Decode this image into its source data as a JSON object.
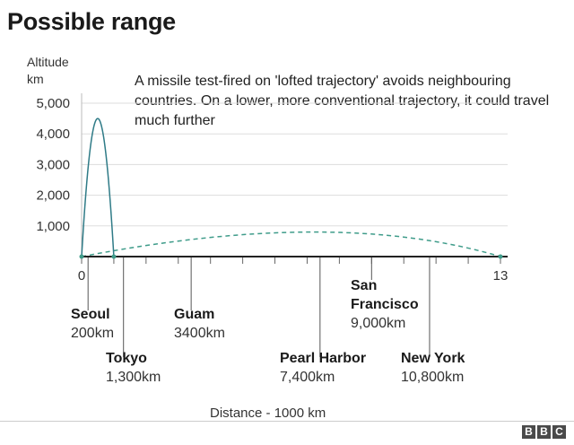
{
  "title": "Possible range",
  "annotation": "A missile test-fired on 'lofted trajectory' avoids neighbouring countries. On a lower, more conventional trajectory, it could travel much further",
  "footer": {
    "logo": [
      "B",
      "B",
      "C"
    ]
  },
  "colors": {
    "lofted": "#2f7b87",
    "conventional": "#3f9c8a",
    "axis": "#222222",
    "grid": "#dddddd",
    "tick": "#666666"
  },
  "chart_data": {
    "type": "line",
    "title": "Possible range",
    "ylabel": "Altitude\nkm",
    "xlabel": "Distance - 1000 km",
    "xlim": [
      0,
      13
    ],
    "ylim": [
      0,
      5000
    ],
    "y_ticks": [
      "1,000",
      "2,000",
      "3,000",
      "4,000",
      "5,000"
    ],
    "y_tick_values": [
      1000,
      2000,
      3000,
      4000,
      5000
    ],
    "x_tick_labels": [
      {
        "label": "0",
        "value": 0
      },
      {
        "label": "13",
        "value": 13
      }
    ],
    "series": [
      {
        "style": "solid",
        "peak_altitude": 4500,
        "range_start": 0,
        "range_end": 1.0
      },
      {
        "style": "dashed",
        "peak_altitude": 800,
        "peak_x": 7.2,
        "range_start": 0,
        "range_end": 13
      }
    ],
    "annotations": [
      {
        "name": "Seoul",
        "distance_label": "200km",
        "x": 0.2
      },
      {
        "name": "Tokyo",
        "distance_label": "1,300km",
        "x": 1.3
      },
      {
        "name": "Guam",
        "distance_label": "3400km",
        "x": 3.4
      },
      {
        "name": "Pearl Harbor",
        "distance_label": "7,400km",
        "x": 7.4
      },
      {
        "name": "San Francisco",
        "distance_label": "9,000km",
        "x": 9.0
      },
      {
        "name": "New York",
        "distance_label": "10,800km",
        "x": 10.8
      }
    ]
  }
}
